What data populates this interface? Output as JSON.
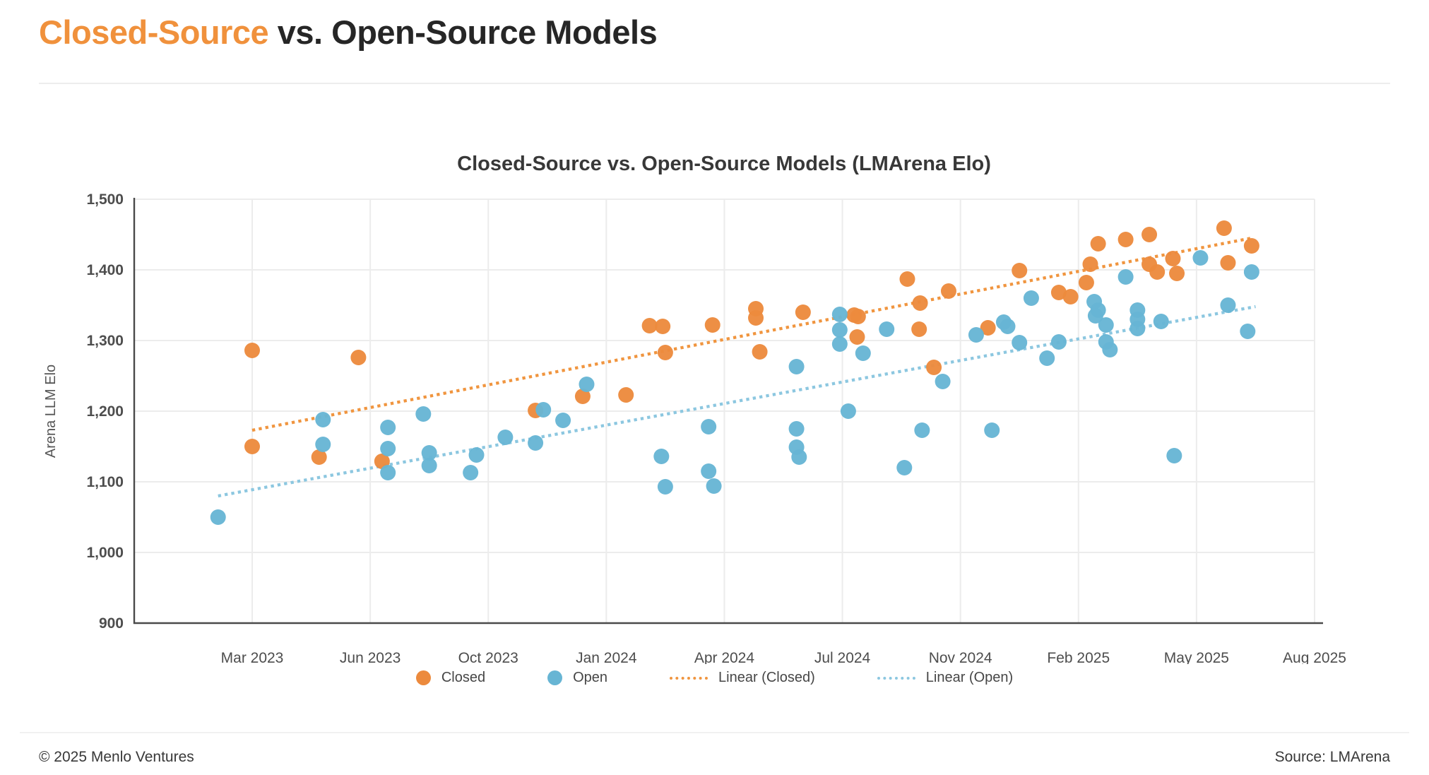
{
  "header": {
    "title_orange": "Closed-Source",
    "title_rest": " vs. Open-Source Models"
  },
  "chart": {
    "title": "Closed-Source vs. Open-Source Models (LMArena Elo)",
    "y_axis_label": "Arena LLM Elo"
  },
  "legend": {
    "items": [
      {
        "label": "Closed",
        "swatch": "dot",
        "color": "#EC8A3D"
      },
      {
        "label": "Open",
        "swatch": "dot",
        "color": "#67B5D4"
      },
      {
        "label": "Linear (Closed)",
        "swatch": "dotted-line",
        "color": "#F0953F"
      },
      {
        "label": "Linear (Open)",
        "swatch": "dotted-line",
        "color": "#8CC7E0"
      }
    ]
  },
  "footer": {
    "copyright": "© 2025 Menlo Ventures",
    "source": "Source: LMArena"
  },
  "colors": {
    "closed": "#EC8A3D",
    "open": "#67B5D4",
    "trend_closed": "#F0953F",
    "trend_open": "#8CC7E0",
    "accent_title": "#F0913C",
    "text_dark": "#262626",
    "grid": "#ECECEC",
    "axis": "#4A4A4A",
    "tick_text": "#4D4D4D",
    "title_text": "#383838"
  },
  "chart_data": {
    "type": "scatter",
    "title": "Closed-Source vs. Open-Source Models (LMArena Elo)",
    "xlabel": "",
    "ylabel": "Arena LLM Elo",
    "ylim": [
      900,
      1500
    ],
    "ytick_step": 100,
    "grid": true,
    "legend_position": "bottom",
    "y_tick_labels": [
      "900",
      "1,000",
      "1,100",
      "1,200",
      "1,300",
      "1,400",
      "1,500"
    ],
    "x_tick_labels": [
      "Mar 2023",
      "Jun 2023",
      "Oct 2023",
      "Jan 2024",
      "Apr 2024",
      "Jul 2024",
      "Nov 2024",
      "Feb 2025",
      "May 2025",
      "Aug 2025"
    ],
    "x_tick_months": [
      "2023-03",
      "2023-06",
      "2023-10",
      "2024-01",
      "2024-04",
      "2024-07",
      "2024-11",
      "2025-02",
      "2025-05",
      "2025-08"
    ],
    "series": [
      {
        "name": "Closed",
        "color": "#EC8A3D",
        "points": [
          [
            "2023-03-01",
            1286
          ],
          [
            "2023-03-01",
            1150
          ],
          [
            "2023-04-22",
            1135
          ],
          [
            "2023-05-22",
            1276
          ],
          [
            "2023-06-13",
            1129
          ],
          [
            "2023-11-07",
            1201
          ],
          [
            "2023-12-13",
            1221
          ],
          [
            "2024-01-16",
            1223
          ],
          [
            "2024-02-04",
            1321
          ],
          [
            "2024-02-14",
            1320
          ],
          [
            "2024-02-16",
            1283
          ],
          [
            "2024-03-22",
            1322
          ],
          [
            "2024-04-25",
            1345
          ],
          [
            "2024-04-25",
            1332
          ],
          [
            "2024-04-28",
            1284
          ],
          [
            "2024-06-01",
            1340
          ],
          [
            "2024-07-13",
            1336
          ],
          [
            "2024-07-17",
            1334
          ],
          [
            "2024-07-16",
            1305
          ],
          [
            "2024-09-07",
            1387
          ],
          [
            "2024-09-20",
            1353
          ],
          [
            "2024-09-19",
            1316
          ],
          [
            "2024-10-04",
            1262
          ],
          [
            "2024-10-19",
            1370
          ],
          [
            "2024-11-22",
            1318
          ],
          [
            "2024-12-16",
            1399
          ],
          [
            "2025-01-16",
            1368
          ],
          [
            "2025-01-25",
            1362
          ],
          [
            "2025-02-07",
            1382
          ],
          [
            "2025-02-10",
            1408
          ],
          [
            "2025-02-16",
            1437
          ],
          [
            "2025-03-07",
            1443
          ],
          [
            "2025-03-25",
            1450
          ],
          [
            "2025-03-25",
            1408
          ],
          [
            "2025-04-01",
            1397
          ],
          [
            "2025-04-13",
            1416
          ],
          [
            "2025-04-16",
            1395
          ],
          [
            "2025-05-22",
            1459
          ],
          [
            "2025-05-25",
            1410
          ],
          [
            "2025-06-13",
            1434
          ]
        ]
      },
      {
        "name": "Open",
        "color": "#67B5D4",
        "points": [
          [
            "2023-02-05",
            1050
          ],
          [
            "2023-04-25",
            1188
          ],
          [
            "2023-04-25",
            1153
          ],
          [
            "2023-06-19",
            1177
          ],
          [
            "2023-06-19",
            1147
          ],
          [
            "2023-06-19",
            1113
          ],
          [
            "2023-07-25",
            1196
          ],
          [
            "2023-08-01",
            1141
          ],
          [
            "2023-08-01",
            1123
          ],
          [
            "2023-09-19",
            1138
          ],
          [
            "2023-09-13",
            1113
          ],
          [
            "2023-10-14",
            1163
          ],
          [
            "2023-11-07",
            1155
          ],
          [
            "2023-11-13",
            1202
          ],
          [
            "2023-11-28",
            1187
          ],
          [
            "2023-12-16",
            1238
          ],
          [
            "2024-02-13",
            1136
          ],
          [
            "2024-02-16",
            1093
          ],
          [
            "2024-03-19",
            1178
          ],
          [
            "2024-03-19",
            1115
          ],
          [
            "2024-03-23",
            1094
          ],
          [
            "2024-05-26",
            1263
          ],
          [
            "2024-05-26",
            1175
          ],
          [
            "2024-05-26",
            1149
          ],
          [
            "2024-05-28",
            1135
          ],
          [
            "2024-06-29",
            1337
          ],
          [
            "2024-06-29",
            1315
          ],
          [
            "2024-06-29",
            1295
          ],
          [
            "2024-07-22",
            1282
          ],
          [
            "2024-07-07",
            1200
          ],
          [
            "2024-08-16",
            1316
          ],
          [
            "2024-09-04",
            1120
          ],
          [
            "2024-09-22",
            1173
          ],
          [
            "2024-10-13",
            1242
          ],
          [
            "2024-11-13",
            1308
          ],
          [
            "2024-11-25",
            1173
          ],
          [
            "2024-12-04",
            1326
          ],
          [
            "2024-12-07",
            1320
          ],
          [
            "2024-12-16",
            1297
          ],
          [
            "2024-12-25",
            1360
          ],
          [
            "2025-01-07",
            1275
          ],
          [
            "2025-01-16",
            1298
          ],
          [
            "2025-02-13",
            1355
          ],
          [
            "2025-02-16",
            1343
          ],
          [
            "2025-02-14",
            1335
          ],
          [
            "2025-02-22",
            1322
          ],
          [
            "2025-02-22",
            1298
          ],
          [
            "2025-02-25",
            1287
          ],
          [
            "2025-03-07",
            1390
          ],
          [
            "2025-03-16",
            1343
          ],
          [
            "2025-03-16",
            1330
          ],
          [
            "2025-03-16",
            1317
          ],
          [
            "2025-04-04",
            1327
          ],
          [
            "2025-04-14",
            1137
          ],
          [
            "2025-05-04",
            1417
          ],
          [
            "2025-05-25",
            1350
          ],
          [
            "2025-06-13",
            1397
          ],
          [
            "2025-06-10",
            1313
          ]
        ]
      }
    ],
    "trendlines": [
      {
        "name": "Linear (Closed)",
        "color": "#F0953F",
        "start": [
          "2023-03-01",
          1173
        ],
        "end": [
          "2025-06-13",
          1445
        ]
      },
      {
        "name": "Linear (Open)",
        "color": "#8CC7E0",
        "start": [
          "2023-02-05",
          1080
        ],
        "end": [
          "2025-06-16",
          1348
        ]
      }
    ]
  }
}
